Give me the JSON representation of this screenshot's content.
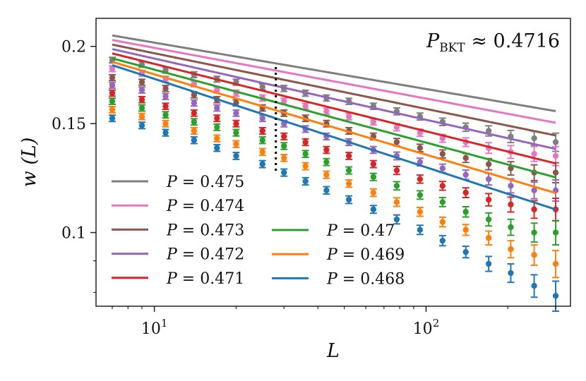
{
  "chart_data": {
    "type": "line",
    "title": "",
    "annotation": "P_BKT ≈ 0.4716",
    "annotation_main": "P",
    "annotation_sub": "BKT",
    "annotation_rest": " ≈ 0.4716",
    "xlabel": "L",
    "ylabel": "w (L)",
    "xscale": "log",
    "yscale": "log",
    "xlim": [
      6.1,
      340
    ],
    "ylim": [
      0.076,
      0.222
    ],
    "xticks": [
      {
        "value": 10,
        "base": "10",
        "exp": "1"
      },
      {
        "value": 100,
        "base": "10",
        "exp": "2"
      }
    ],
    "yticks": [
      {
        "value": 0.1,
        "label": "0.1"
      },
      {
        "value": 0.15,
        "label": "0.15"
      },
      {
        "value": 0.2,
        "label": "0.2"
      }
    ],
    "crossover_L": 28,
    "fit_L_range": [
      7,
      300
    ],
    "L": [
      7,
      9,
      11,
      14,
      17,
      20,
      25,
      30,
      36,
      43,
      52,
      64,
      78,
      95,
      115,
      140,
      170,
      205,
      250,
      300
    ],
    "legend": {
      "placement": "lower-left",
      "columns": 2,
      "entries": [
        "P = 0.475",
        "P = 0.474",
        "P = 0.473",
        "P = 0.472",
        "P = 0.471",
        "P = 0.47",
        "P = 0.469",
        "P = 0.468"
      ]
    },
    "series": [
      {
        "name": "P = 0.475",
        "color": "#7f7f7f",
        "fit_a": 0.2083,
        "fit_b": -0.075,
        "values": [
          0.19,
          0.187,
          0.183,
          0.18,
          0.177,
          0.175,
          0.172,
          0.171,
          0.168,
          0.165,
          0.163,
          0.16,
          0.157,
          0.154,
          0.151,
          0.148,
          0.146,
          0.143,
          0.142,
          0.14
        ],
        "err": [
          0.001,
          0.001,
          0.001,
          0.001,
          0.001,
          0.001,
          0.001,
          0.001,
          0.001,
          0.001,
          0.001,
          0.001,
          0.0012,
          0.0012,
          0.0013,
          0.0015,
          0.002,
          0.0025,
          0.003,
          0.004
        ]
      },
      {
        "name": "P = 0.474",
        "color": "#e377c2",
        "fit_a": 0.2048,
        "fit_b": -0.082,
        "values": [
          0.184,
          0.181,
          0.177,
          0.174,
          0.17,
          0.168,
          0.165,
          0.163,
          0.16,
          0.157,
          0.154,
          0.151,
          0.148,
          0.145,
          0.142,
          0.14,
          0.137,
          0.135,
          0.134,
          0.133
        ],
        "err": [
          0.001,
          0.001,
          0.001,
          0.001,
          0.001,
          0.001,
          0.001,
          0.001,
          0.001,
          0.001,
          0.001,
          0.001,
          0.0012,
          0.0012,
          0.0013,
          0.0015,
          0.002,
          0.0025,
          0.003,
          0.004
        ]
      },
      {
        "name": "P = 0.473",
        "color": "#8c564b",
        "fit_a": 0.2013,
        "fit_b": -0.09,
        "values": [
          0.178,
          0.175,
          0.171,
          0.167,
          0.164,
          0.162,
          0.159,
          0.156,
          0.153,
          0.15,
          0.146,
          0.143,
          0.14,
          0.137,
          0.134,
          0.132,
          0.129,
          0.127,
          0.125,
          0.125
        ],
        "err": [
          0.001,
          0.001,
          0.001,
          0.001,
          0.001,
          0.001,
          0.001,
          0.001,
          0.001,
          0.001,
          0.001,
          0.001,
          0.0012,
          0.0012,
          0.0013,
          0.0015,
          0.002,
          0.0025,
          0.003,
          0.004
        ]
      },
      {
        "name": "P = 0.472",
        "color": "#9467bd",
        "fit_a": 0.198,
        "fit_b": -0.099,
        "values": [
          0.173,
          0.17,
          0.166,
          0.162,
          0.159,
          0.156,
          0.153,
          0.15,
          0.147,
          0.143,
          0.14,
          0.136,
          0.133,
          0.13,
          0.127,
          0.124,
          0.122,
          0.119,
          0.117,
          0.117
        ],
        "err": [
          0.001,
          0.001,
          0.001,
          0.001,
          0.001,
          0.001,
          0.001,
          0.001,
          0.001,
          0.001,
          0.001,
          0.001,
          0.0012,
          0.0012,
          0.0013,
          0.0015,
          0.002,
          0.0025,
          0.003,
          0.004
        ]
      },
      {
        "name": "P = 0.471",
        "color": "#d62728",
        "fit_a": 0.1948,
        "fit_b": -0.109,
        "values": [
          0.168,
          0.164,
          0.16,
          0.156,
          0.153,
          0.15,
          0.146,
          0.143,
          0.14,
          0.136,
          0.133,
          0.129,
          0.126,
          0.122,
          0.119,
          0.116,
          0.113,
          0.111,
          0.109,
          0.109
        ],
        "err": [
          0.001,
          0.001,
          0.001,
          0.001,
          0.001,
          0.001,
          0.001,
          0.001,
          0.001,
          0.001,
          0.001,
          0.001,
          0.0012,
          0.0012,
          0.0013,
          0.0015,
          0.002,
          0.0025,
          0.003,
          0.004
        ]
      },
      {
        "name": "P = 0.47",
        "color": "#2ca02c",
        "fit_a": 0.1913,
        "fit_b": -0.118,
        "values": [
          0.163,
          0.159,
          0.155,
          0.151,
          0.148,
          0.145,
          0.141,
          0.138,
          0.134,
          0.13,
          0.126,
          0.123,
          0.119,
          0.115,
          0.112,
          0.108,
          0.105,
          0.102,
          0.1,
          0.1
        ],
        "err": [
          0.001,
          0.001,
          0.001,
          0.001,
          0.001,
          0.001,
          0.001,
          0.001,
          0.001,
          0.001,
          0.001,
          0.001,
          0.0012,
          0.0012,
          0.0013,
          0.0015,
          0.002,
          0.0025,
          0.003,
          0.004
        ]
      },
      {
        "name": "P = 0.469",
        "color": "#ff7f0e",
        "fit_a": 0.1888,
        "fit_b": -0.13,
        "values": [
          0.158,
          0.154,
          0.15,
          0.146,
          0.142,
          0.139,
          0.135,
          0.132,
          0.128,
          0.124,
          0.12,
          0.116,
          0.112,
          0.108,
          0.104,
          0.101,
          0.098,
          0.094,
          0.092,
          0.089
        ],
        "err": [
          0.001,
          0.001,
          0.001,
          0.001,
          0.001,
          0.001,
          0.001,
          0.001,
          0.001,
          0.001,
          0.001,
          0.001,
          0.0012,
          0.0012,
          0.0013,
          0.0015,
          0.002,
          0.0025,
          0.003,
          0.004
        ]
      },
      {
        "name": "P = 0.468",
        "color": "#1f77b4",
        "fit_a": 0.1865,
        "fit_b": -0.143,
        "values": [
          0.153,
          0.149,
          0.145,
          0.141,
          0.137,
          0.133,
          0.129,
          0.125,
          0.121,
          0.117,
          0.113,
          0.109,
          0.105,
          0.101,
          0.097,
          0.093,
          0.089,
          0.086,
          0.082,
          0.079
        ],
        "err": [
          0.001,
          0.001,
          0.001,
          0.001,
          0.001,
          0.001,
          0.001,
          0.001,
          0.001,
          0.001,
          0.001,
          0.001,
          0.0012,
          0.0012,
          0.0013,
          0.0015,
          0.002,
          0.0025,
          0.003,
          0.004
        ]
      }
    ]
  }
}
